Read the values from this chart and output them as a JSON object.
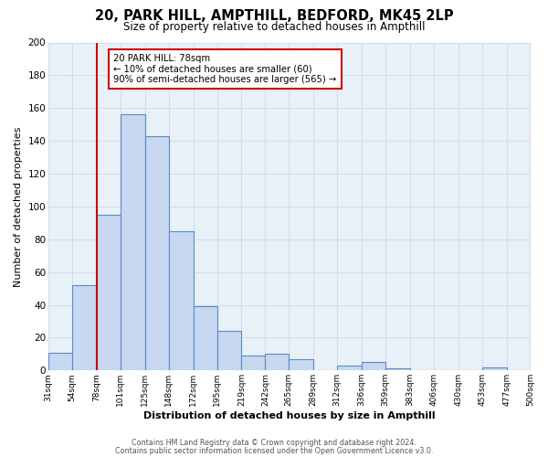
{
  "title": "20, PARK HILL, AMPTHILL, BEDFORD, MK45 2LP",
  "subtitle": "Size of property relative to detached houses in Ampthill",
  "xlabel": "Distribution of detached houses by size in Ampthill",
  "ylabel": "Number of detached properties",
  "bin_edges": [
    31,
    54,
    78,
    101,
    125,
    148,
    172,
    195,
    219,
    242,
    265,
    289,
    312,
    336,
    359,
    383,
    406,
    430,
    453,
    477,
    500
  ],
  "bar_heights": [
    11,
    52,
    95,
    156,
    143,
    85,
    39,
    24,
    9,
    10,
    7,
    0,
    3,
    5,
    1,
    0,
    0,
    0,
    2,
    0
  ],
  "bar_color": "#c8d8f0",
  "bar_edge_color": "#5a8ac6",
  "vline_x": 78,
  "vline_color": "#cc0000",
  "annotation_line1": "20 PARK HILL: 78sqm",
  "annotation_line2": "← 10% of detached houses are smaller (60)",
  "annotation_line3": "90% of semi-detached houses are larger (565) →",
  "annotation_box_color": "#cc0000",
  "ylim": [
    0,
    200
  ],
  "yticks": [
    0,
    20,
    40,
    60,
    80,
    100,
    120,
    140,
    160,
    180,
    200
  ],
  "tick_labels": [
    "31sqm",
    "54sqm",
    "78sqm",
    "101sqm",
    "125sqm",
    "148sqm",
    "172sqm",
    "195sqm",
    "219sqm",
    "242sqm",
    "265sqm",
    "289sqm",
    "312sqm",
    "336sqm",
    "359sqm",
    "383sqm",
    "406sqm",
    "430sqm",
    "453sqm",
    "477sqm",
    "500sqm"
  ],
  "grid_color": "#d0dcea",
  "bg_color": "#e8f0f8",
  "fig_bg_color": "#ffffff",
  "footer_line1": "Contains HM Land Registry data © Crown copyright and database right 2024.",
  "footer_line2": "Contains public sector information licensed under the Open Government Licence v3.0."
}
